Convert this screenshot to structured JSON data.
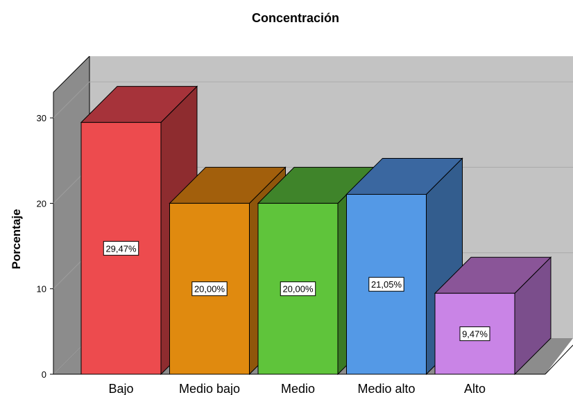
{
  "chart_data": {
    "type": "bar",
    "title": "Concentración",
    "xlabel": "",
    "ylabel": "Porcentaje",
    "ylim": [
      0,
      33
    ],
    "yticks": [
      0,
      10,
      20,
      30
    ],
    "categories": [
      "Bajo",
      "Medio bajo",
      "Medio",
      "Medio alto",
      "Alto"
    ],
    "values": [
      29.47,
      20.0,
      20.0,
      21.05,
      9.47
    ],
    "data_labels": [
      "29,47%",
      "20,00%",
      "20,00%",
      "21,05%",
      "9,47%"
    ],
    "colors": [
      "#ED4B4E",
      "#E08A0F",
      "#5FC43B",
      "#5499E6",
      "#C984E6"
    ],
    "side_colors": [
      "#8E2C2F",
      "#8F560B",
      "#3A7A25",
      "#335D8E",
      "#7B4E8C"
    ],
    "top_colors": [
      "#A6333A",
      "#A25F0C",
      "#3F842A",
      "#3A67A0",
      "#8A5598"
    ],
    "grid": true,
    "style": "3d-bars"
  }
}
